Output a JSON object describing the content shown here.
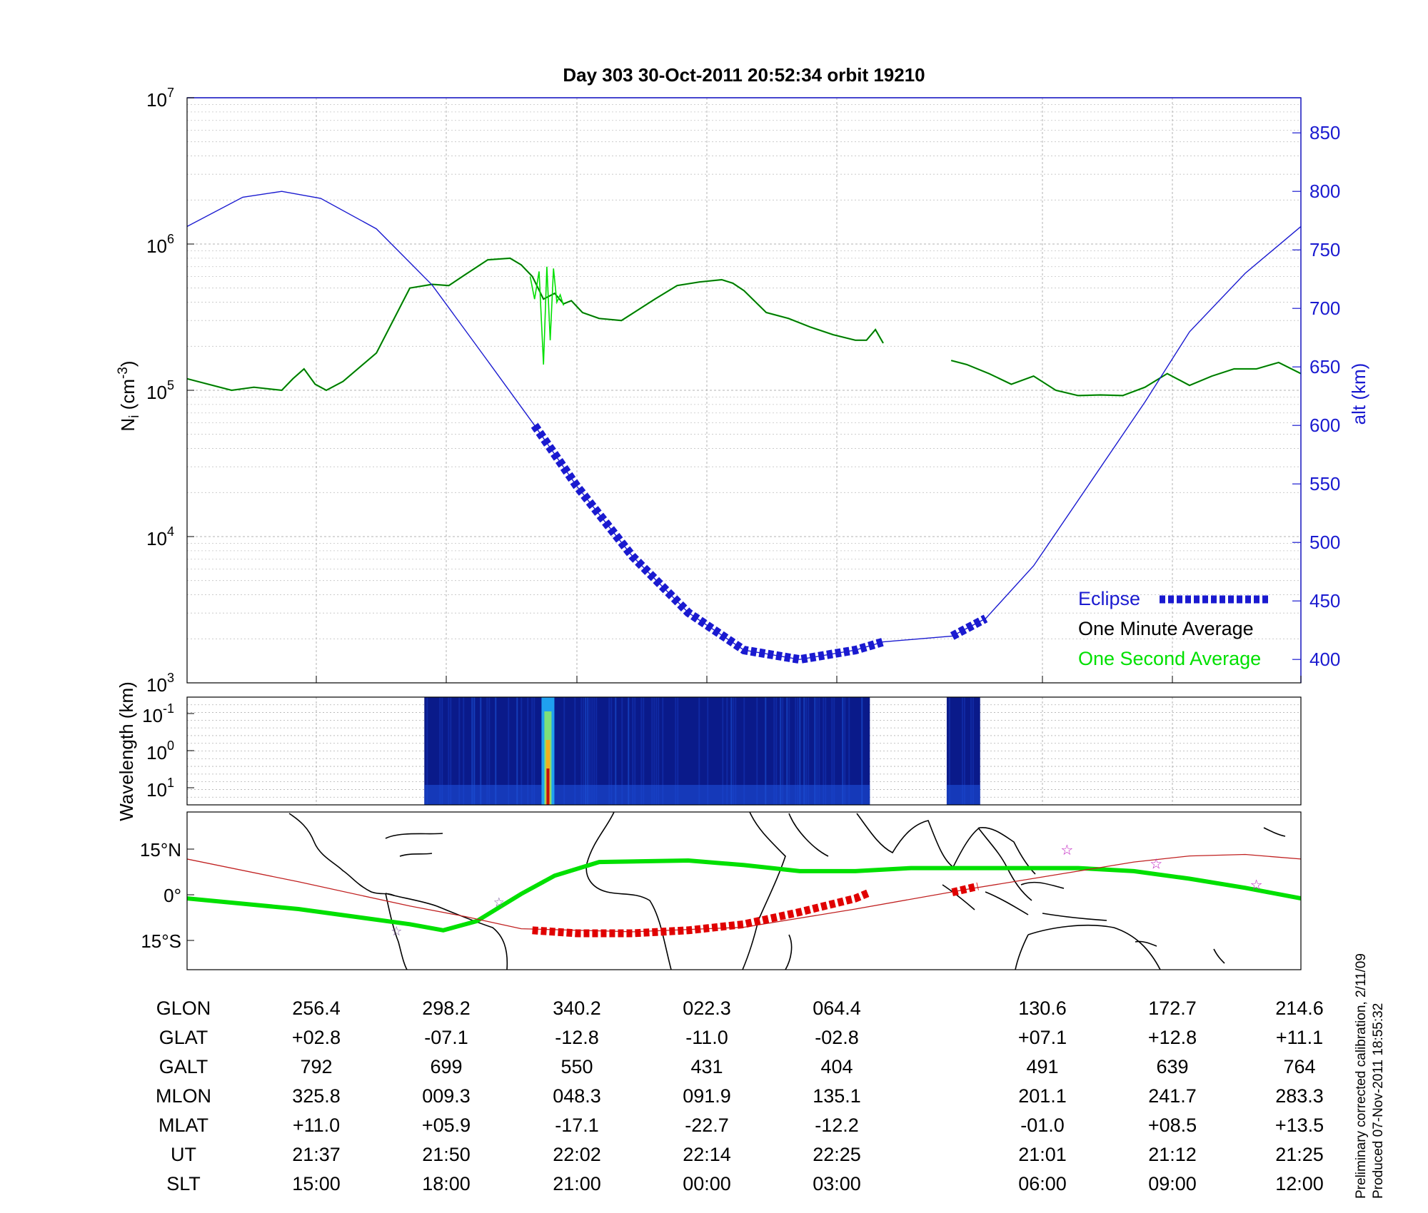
{
  "chart_data": [
    {
      "type": "line",
      "title": "Day 303  30-Oct-2011 20:52:34   orbit 19210",
      "ylabel": "N_i (cm^-3)",
      "y2label": "alt (km)",
      "y_scale": "log",
      "ylim": [
        1000,
        10000000
      ],
      "y_ticks": [
        {
          "base": "10",
          "exp": "3"
        },
        {
          "base": "10",
          "exp": "4"
        },
        {
          "base": "10",
          "exp": "5"
        },
        {
          "base": "10",
          "exp": "6"
        },
        {
          "base": "10",
          "exp": "7"
        }
      ],
      "y2lim": [
        380,
        880
      ],
      "y2_ticks": [
        "400",
        "450",
        "500",
        "550",
        "600",
        "650",
        "700",
        "750",
        "800",
        "850"
      ],
      "x_ticks": [
        "15:00",
        "18:00",
        "21:00",
        "00:00",
        "03:00",
        "06:00",
        "09:00",
        "12:00"
      ],
      "grid": true,
      "legend_position": "bottom-right",
      "legend": [
        {
          "label": "Eclipse",
          "color": "#1a1ad0"
        },
        {
          "label": "One Minute Average",
          "color": "#000000"
        },
        {
          "label": "One Second Average",
          "color": "#00e000"
        }
      ],
      "series": [
        {
          "name": "Ni",
          "color": "#0a5a0a",
          "x": [
            0,
            0.04,
            0.06,
            0.085,
            0.095,
            0.105,
            0.115,
            0.125,
            0.14,
            0.17,
            0.2,
            0.22,
            0.235,
            0.25,
            0.27,
            0.29,
            0.3,
            0.31,
            0.32,
            0.33,
            0.338,
            0.345,
            0.355,
            0.37,
            0.39,
            0.42,
            0.44,
            0.46,
            0.48,
            0.49,
            0.5,
            0.52,
            0.54,
            0.56,
            0.58,
            0.6,
            0.61,
            0.618,
            0.625
          ],
          "y": [
            120000,
            100000,
            105000,
            100000,
            120000,
            140000,
            110000,
            100000,
            115000,
            180000,
            500000,
            530000,
            520000,
            620000,
            780000,
            800000,
            720000,
            600000,
            420000,
            460000,
            390000,
            410000,
            340000,
            310000,
            300000,
            420000,
            520000,
            550000,
            570000,
            540000,
            480000,
            340000,
            310000,
            270000,
            240000,
            220000,
            220000,
            260000,
            210000
          ]
        },
        {
          "name": "Ni",
          "color": "#0a5a0a",
          "x": [
            0.686,
            0.7,
            0.72,
            0.74,
            0.76,
            0.78,
            0.8,
            0.82,
            0.84,
            0.86,
            0.88,
            0.9,
            0.92,
            0.94,
            0.96,
            0.98,
            1.0
          ],
          "y": [
            160000,
            150000,
            130000,
            110000,
            125000,
            100000,
            92000,
            93000,
            92000,
            105000,
            130000,
            108000,
            125000,
            140000,
            140000,
            155000,
            130000
          ]
        },
        {
          "name": "One Second Average",
          "color": "#00e000",
          "x": [
            0.308,
            0.312,
            0.316,
            0.32,
            0.323,
            0.326,
            0.329,
            0.332,
            0.335,
            0.338
          ],
          "y": [
            600000,
            420000,
            650000,
            150000,
            700000,
            220000,
            680000,
            400000,
            450000,
            380000
          ]
        },
        {
          "name": "alt",
          "axis": "right",
          "color": "#1a1ad0",
          "x": [
            0,
            0.05,
            0.085,
            0.12,
            0.17,
            0.22,
            0.27,
            0.312,
            0.35,
            0.4,
            0.45,
            0.5,
            0.55,
            0.6,
            0.625,
            0.687,
            0.717,
            0.76,
            0.81,
            0.86,
            0.9,
            0.95,
            1.0
          ],
          "y": [
            770,
            795,
            800,
            794,
            768,
            720,
            655,
            600,
            548,
            488,
            440,
            408,
            400,
            408,
            415,
            420,
            435,
            480,
            550,
            620,
            680,
            730,
            770
          ]
        },
        {
          "name": "Eclipse",
          "axis": "right",
          "color": "#1a1ad0",
          "x": [
            0.312,
            0.35,
            0.4,
            0.45,
            0.5,
            0.55,
            0.6,
            0.625
          ],
          "y": [
            600,
            548,
            488,
            440,
            408,
            400,
            408,
            415
          ]
        },
        {
          "name": "Eclipse",
          "axis": "right",
          "color": "#1a1ad0",
          "x": [
            0.687,
            0.717
          ],
          "y": [
            420,
            435
          ]
        }
      ]
    },
    {
      "type": "heatmap",
      "ylabel": "Wavelength (km)",
      "y_ticks": [
        {
          "base": "10",
          "exp": "-1"
        },
        {
          "base": "10",
          "exp": "0"
        },
        {
          "base": "10",
          "exp": "1"
        }
      ],
      "blocks": [
        {
          "x_start": 0.213,
          "x_end": 0.613
        },
        {
          "x_start": 0.682,
          "x_end": 0.712
        }
      ],
      "hotspot_x": 0.324
    },
    {
      "type": "line",
      "y_ticks": [
        "15°N",
        "0°",
        "15°S"
      ],
      "ylim": [
        -25,
        27
      ],
      "series": [
        {
          "name": "satellite track",
          "color": "#00e000",
          "x": [
            0,
            0.1,
            0.2,
            0.23,
            0.26,
            0.3,
            0.33,
            0.37,
            0.45,
            0.5,
            0.55,
            0.6,
            0.65,
            0.7,
            0.8,
            0.85,
            0.9,
            0.95,
            1.0
          ],
          "y": [
            -1.5,
            -5,
            -10,
            -12,
            -9,
            0,
            6,
            10.5,
            11,
            9.5,
            7.5,
            7.5,
            8.5,
            8.5,
            8.5,
            7.5,
            5,
            2,
            -1.5
          ]
        },
        {
          "name": "magnetic equator",
          "color": "#c02020",
          "x": [
            0,
            0.1,
            0.2,
            0.25,
            0.3,
            0.4,
            0.5,
            0.6,
            0.7,
            0.8,
            0.85,
            0.9,
            0.95,
            1.0
          ],
          "y": [
            11.5,
            4,
            -4,
            -7.5,
            -11.5,
            -12.5,
            -11,
            -5,
            1.5,
            7.5,
            10.5,
            12.5,
            13,
            11.5
          ]
        },
        {
          "name": "eclipse track",
          "color": "#e00000",
          "x": [
            0.31,
            0.35,
            0.4,
            0.45,
            0.5,
            0.55,
            0.6,
            0.613
          ],
          "y": [
            -12,
            -13,
            -13,
            -12,
            -10,
            -6,
            -1.5,
            0.5
          ]
        },
        {
          "name": "eclipse track",
          "color": "#e00000",
          "x": [
            0.687,
            0.71
          ],
          "y": [
            0.5,
            2.5
          ]
        }
      ],
      "stars": [
        {
          "x": 0.79,
          "y": 14.5
        },
        {
          "x": 0.87,
          "y": 10
        },
        {
          "x": 0.96,
          "y": 3
        }
      ],
      "crosses": [
        {
          "x": 0.188,
          "y": -12
        },
        {
          "x": 0.28,
          "y": -2.5
        }
      ]
    }
  ],
  "table": {
    "rows": [
      {
        "label": "GLON",
        "values": [
          "256.4",
          "298.2",
          "340.2",
          "022.3",
          "064.4",
          "130.6",
          "172.7",
          "214.6"
        ]
      },
      {
        "label": "GLAT",
        "values": [
          "+02.8",
          "-07.1",
          "-12.8",
          "-11.0",
          "-02.8",
          "+07.1",
          "+12.8",
          "+11.1"
        ]
      },
      {
        "label": "GALT",
        "values": [
          "792",
          "699",
          "550",
          "431",
          "404",
          "491",
          "639",
          "764"
        ]
      },
      {
        "label": "MLON",
        "values": [
          "325.8",
          "009.3",
          "048.3",
          "091.9",
          "135.1",
          "201.1",
          "241.7",
          "283.3"
        ]
      },
      {
        "label": "MLAT",
        "values": [
          "+11.0",
          "+05.9",
          "-17.1",
          "-22.7",
          "-12.2",
          "-01.0",
          "+08.5",
          "+13.5"
        ]
      },
      {
        "label": "UT",
        "values": [
          "21:37",
          "21:50",
          "22:02",
          "22:14",
          "22:25",
          "21:01",
          "21:12",
          "21:25"
        ]
      },
      {
        "label": "SLT",
        "values": [
          "15:00",
          "18:00",
          "21:00",
          "00:00",
          "03:00",
          "06:00",
          "09:00",
          "12:00"
        ]
      }
    ]
  },
  "footer": {
    "line1": "Preliminary corrected calibration, 2/11/09",
    "line2": "Produced 07-Nov-2011 18:55:32"
  }
}
